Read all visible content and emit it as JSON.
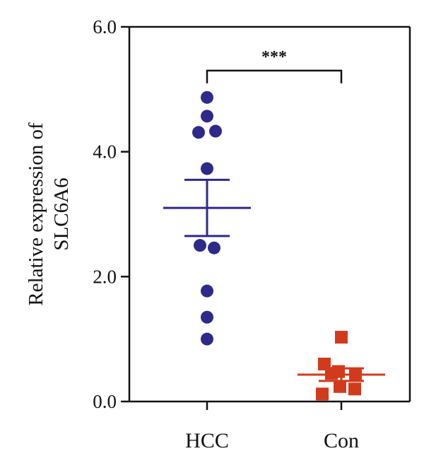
{
  "chart_data": {
    "type": "scatter",
    "title": "",
    "xlabel": "",
    "ylabel": [
      "Relative expression of",
      "SLC6A6"
    ],
    "ylim": [
      0,
      6
    ],
    "yticks": [
      "0.0",
      "2.0",
      "4.0",
      "6.0"
    ],
    "categories": [
      "HCC",
      "Con"
    ],
    "colors": {
      "HCC": "#2e2a8a",
      "Con": "#d23a1c"
    },
    "markers": {
      "HCC": "circle",
      "Con": "square"
    },
    "groups": [
      {
        "name": "HCC",
        "points": [
          {
            "dx": 0.0,
            "y": 4.87
          },
          {
            "dx": 0.0,
            "y": 4.57
          },
          {
            "dx": -0.12,
            "y": 4.31
          },
          {
            "dx": 0.12,
            "y": 4.33
          },
          {
            "dx": 0.0,
            "y": 3.73
          },
          {
            "dx": -0.1,
            "y": 2.5
          },
          {
            "dx": 0.1,
            "y": 2.46
          },
          {
            "dx": 0.0,
            "y": 1.77
          },
          {
            "dx": 0.0,
            "y": 1.35
          },
          {
            "dx": 0.0,
            "y": 1.0
          }
        ],
        "mean": 3.1,
        "sem_upper": 3.55,
        "sem_lower": 2.65
      },
      {
        "name": "Con",
        "points": [
          {
            "dx": 0.0,
            "y": 1.03
          },
          {
            "dx": -0.24,
            "y": 0.6
          },
          {
            "dx": -0.14,
            "y": 0.45
          },
          {
            "dx": -0.04,
            "y": 0.48
          },
          {
            "dx": 0.2,
            "y": 0.42
          },
          {
            "dx": -0.02,
            "y": 0.24
          },
          {
            "dx": 0.19,
            "y": 0.2
          },
          {
            "dx": -0.27,
            "y": 0.12
          }
        ],
        "mean": 0.43,
        "sem_upper": 0.53,
        "sem_lower": 0.33
      }
    ],
    "significance": {
      "label": "***",
      "between": [
        "HCC",
        "Con"
      ],
      "y": 5.3
    }
  }
}
